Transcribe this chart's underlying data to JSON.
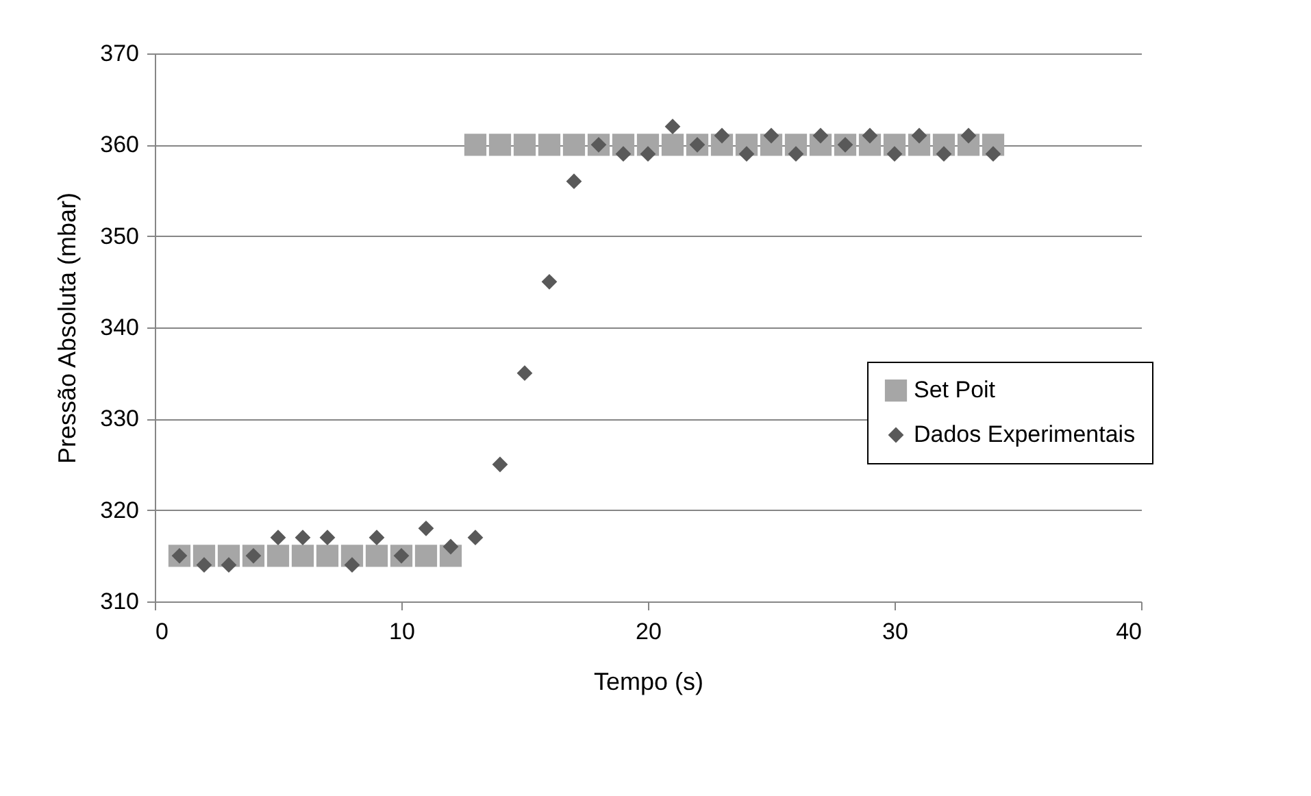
{
  "chart_data": {
    "type": "scatter",
    "xlabel": "Tempo (s)",
    "ylabel": "Pressão Absoluta (mbar)",
    "xlim": [
      0,
      40
    ],
    "xticks": [
      0,
      10,
      20,
      30,
      40
    ],
    "ylim": [
      310,
      370
    ],
    "yticks": [
      310,
      320,
      330,
      340,
      350,
      360,
      370
    ],
    "grid": "y",
    "legend": "right",
    "series": [
      {
        "name": "Set Poit",
        "color": "#a6a6a6",
        "marker": "square",
        "x": [
          1,
          2,
          3,
          4,
          5,
          6,
          7,
          8,
          9,
          10,
          11,
          12,
          13,
          14,
          15,
          16,
          17,
          18,
          19,
          20,
          21,
          22,
          23,
          24,
          25,
          26,
          27,
          28,
          29,
          30,
          31,
          32,
          33,
          34
        ],
        "values": [
          315,
          315,
          315,
          315,
          315,
          315,
          315,
          315,
          315,
          315,
          315,
          315,
          360,
          360,
          360,
          360,
          360,
          360,
          360,
          360,
          360,
          360,
          360,
          360,
          360,
          360,
          360,
          360,
          360,
          360,
          360,
          360,
          360,
          360
        ]
      },
      {
        "name": "Dados Experimentais",
        "color": "#595959",
        "marker": "diamond",
        "x": [
          1,
          2,
          3,
          4,
          5,
          6,
          7,
          8,
          9,
          10,
          11,
          12,
          13,
          14,
          15,
          16,
          17,
          18,
          19,
          20,
          21,
          22,
          23,
          24,
          25,
          26,
          27,
          28,
          29,
          30,
          31,
          32,
          33,
          34
        ],
        "values": [
          315,
          314,
          314,
          315,
          317,
          317,
          317,
          314,
          317,
          315,
          318,
          316,
          317,
          325,
          335,
          345,
          356,
          360,
          359,
          359,
          362,
          360,
          361,
          359,
          361,
          359,
          361,
          360,
          361,
          359,
          361,
          359,
          361,
          359
        ]
      }
    ]
  }
}
